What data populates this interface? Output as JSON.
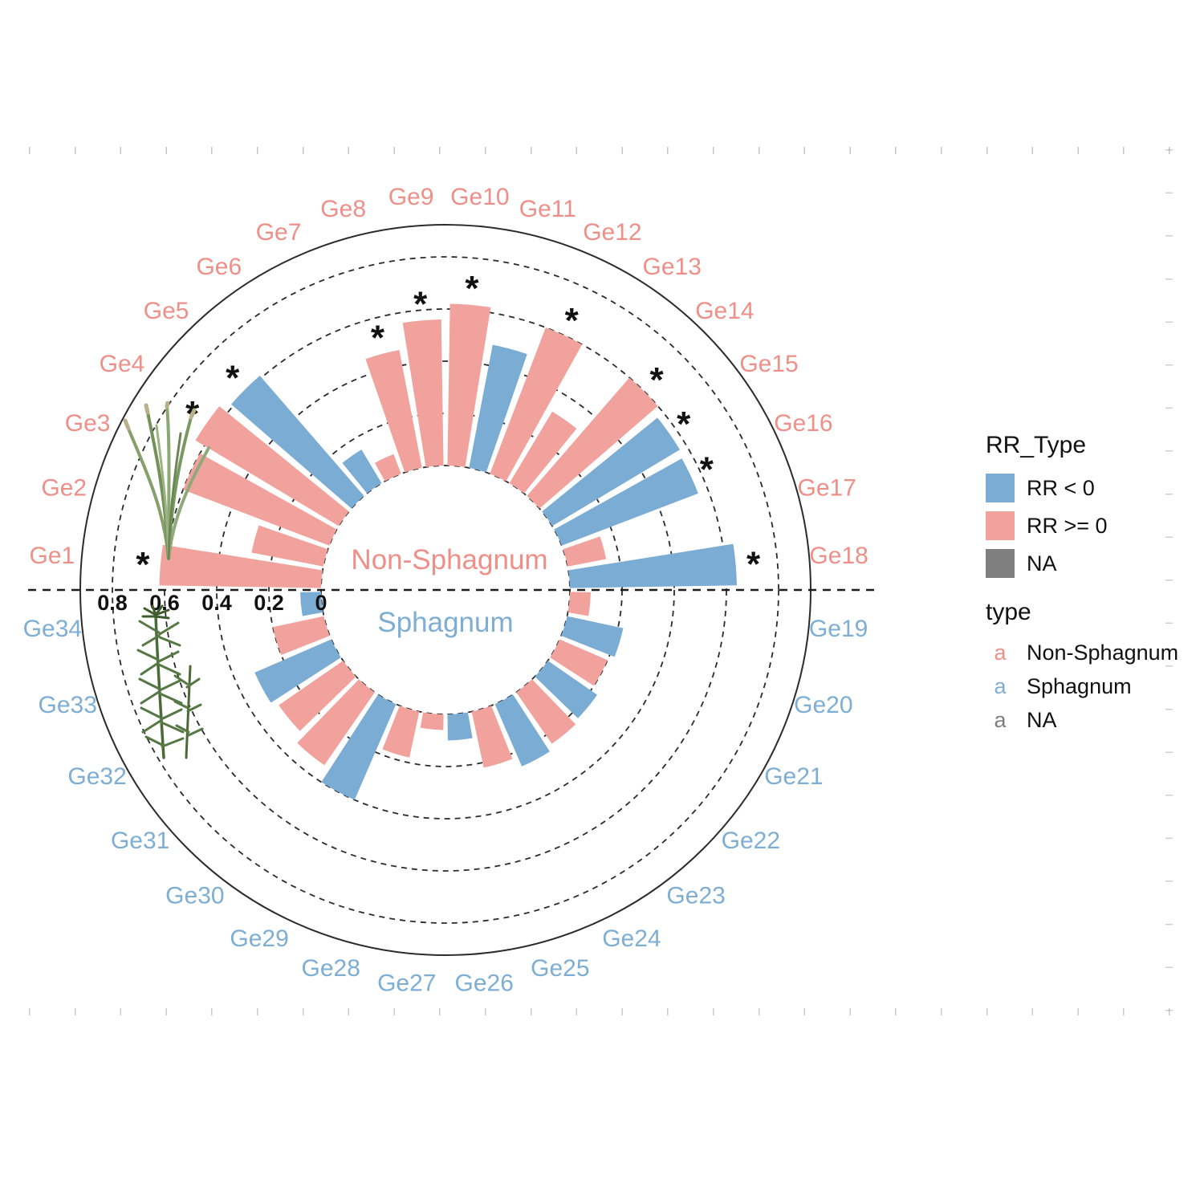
{
  "chart_data": {
    "type": "bar",
    "layout": "polar-circular",
    "title": "",
    "center_labels": {
      "top": "Non-Sphagnum",
      "bottom": "Sphagnum"
    },
    "radial_axis": {
      "ticks": [
        0.8,
        0.6,
        0.4,
        0.2,
        0
      ],
      "tick_labels": [
        "0.8",
        "0.6",
        "0.4",
        "0.2",
        "0"
      ],
      "range": [
        0,
        0.8
      ],
      "grid": "dashed-circles",
      "diameter_line": "dashed-horizontal"
    },
    "colors": {
      "rr_negative": "#7BACD4",
      "rr_nonnegative": "#F2A29C",
      "na": "#7F7F7F",
      "label_top": "#EE8F88",
      "label_bottom": "#7EAED3",
      "star": "#111111"
    },
    "groups": [
      {
        "name": "Non-Sphagnum",
        "half": "top",
        "count": 18
      },
      {
        "name": "Sphagnum",
        "half": "bottom",
        "count": 16
      }
    ],
    "bars": [
      {
        "label": "Ge1",
        "group": "Non-Sphagnum",
        "rr_type": "RR >= 0",
        "value": 0.62,
        "significant": true
      },
      {
        "label": "Ge2",
        "group": "Non-Sphagnum",
        "rr_type": "RR >= 0",
        "value": 0.28,
        "significant": false
      },
      {
        "label": "Ge3",
        "group": "Non-Sphagnum",
        "rr_type": "RR >= 0",
        "value": 0.6,
        "significant": false
      },
      {
        "label": "Ge4",
        "group": "Non-Sphagnum",
        "rr_type": "RR >= 0",
        "value": 0.64,
        "significant": true
      },
      {
        "label": "Ge5",
        "group": "Non-Sphagnum",
        "rr_type": "RR < 0",
        "value": 0.61,
        "significant": true
      },
      {
        "label": "Ge6",
        "group": "Non-Sphagnum",
        "rr_type": "RR < 0",
        "value": 0.15,
        "significant": false
      },
      {
        "label": "Ge7",
        "group": "Non-Sphagnum",
        "rr_type": "RR >= 0",
        "value": 0.08,
        "significant": false
      },
      {
        "label": "Ge8",
        "group": "Non-Sphagnum",
        "rr_type": "RR >= 0",
        "value": 0.46,
        "significant": true
      },
      {
        "label": "Ge9",
        "group": "Non-Sphagnum",
        "rr_type": "RR >= 0",
        "value": 0.56,
        "significant": true
      },
      {
        "label": "Ge10",
        "group": "Non-Sphagnum",
        "rr_type": "RR >= 0",
        "value": 0.62,
        "significant": true
      },
      {
        "label": "Ge11",
        "group": "Non-Sphagnum",
        "rr_type": "RR < 0",
        "value": 0.48,
        "significant": false
      },
      {
        "label": "Ge12",
        "group": "Non-Sphagnum",
        "rr_type": "RR >= 0",
        "value": 0.6,
        "significant": true
      },
      {
        "label": "Ge13",
        "group": "Non-Sphagnum",
        "rr_type": "RR >= 0",
        "value": 0.32,
        "significant": false
      },
      {
        "label": "Ge14",
        "group": "Non-Sphagnum",
        "rr_type": "RR >= 0",
        "value": 0.6,
        "significant": true
      },
      {
        "label": "Ge15",
        "group": "Non-Sphagnum",
        "rr_type": "RR < 0",
        "value": 0.57,
        "significant": true
      },
      {
        "label": "Ge16",
        "group": "Non-Sphagnum",
        "rr_type": "RR < 0",
        "value": 0.56,
        "significant": true
      },
      {
        "label": "Ge17",
        "group": "Non-Sphagnum",
        "rr_type": "RR >= 0",
        "value": 0.15,
        "significant": false
      },
      {
        "label": "Ge18",
        "group": "Non-Sphagnum",
        "rr_type": "RR < 0",
        "value": 0.64,
        "significant": true
      },
      {
        "label": "Ge19",
        "group": "Sphagnum",
        "rr_type": "RR >= 0",
        "value": 0.08,
        "significant": false
      },
      {
        "label": "Ge20",
        "group": "Sphagnum",
        "rr_type": "RR < 0",
        "value": 0.22,
        "significant": false
      },
      {
        "label": "Ge21",
        "group": "Sphagnum",
        "rr_type": "RR >= 0",
        "value": 0.2,
        "significant": false
      },
      {
        "label": "Ge22",
        "group": "Sphagnum",
        "rr_type": "RR < 0",
        "value": 0.23,
        "significant": false
      },
      {
        "label": "Ge23",
        "group": "Sphagnum",
        "rr_type": "RR >= 0",
        "value": 0.24,
        "significant": false
      },
      {
        "label": "Ge24",
        "group": "Sphagnum",
        "rr_type": "RR < 0",
        "value": 0.26,
        "significant": false
      },
      {
        "label": "Ge25",
        "group": "Sphagnum",
        "rr_type": "RR >= 0",
        "value": 0.22,
        "significant": false
      },
      {
        "label": "Ge26",
        "group": "Sphagnum",
        "rr_type": "RR < 0",
        "value": 0.1,
        "significant": false
      },
      {
        "label": "Ge27",
        "group": "Sphagnum",
        "rr_type": "RR >= 0",
        "value": 0.06,
        "significant": false
      },
      {
        "label": "Ge28",
        "group": "Sphagnum",
        "rr_type": "RR >= 0",
        "value": 0.18,
        "significant": false
      },
      {
        "label": "Ge29",
        "group": "Sphagnum",
        "rr_type": "RR < 0",
        "value": 0.4,
        "significant": false
      },
      {
        "label": "Ge30",
        "group": "Sphagnum",
        "rr_type": "RR >= 0",
        "value": 0.34,
        "significant": false
      },
      {
        "label": "Ge31",
        "group": "Sphagnum",
        "rr_type": "RR >= 0",
        "value": 0.3,
        "significant": false
      },
      {
        "label": "Ge32",
        "group": "Sphagnum",
        "rr_type": "RR < 0",
        "value": 0.32,
        "significant": false
      },
      {
        "label": "Ge33",
        "group": "Sphagnum",
        "rr_type": "RR >= 0",
        "value": 0.2,
        "significant": false
      },
      {
        "label": "Ge34",
        "group": "Sphagnum",
        "rr_type": "RR < 0",
        "value": 0.08,
        "significant": false
      }
    ]
  },
  "legend": {
    "rr_type": {
      "heading": "RR_Type",
      "items": [
        {
          "label": "RR < 0",
          "color": "#7BACD4"
        },
        {
          "label": "RR >= 0",
          "color": "#F2A29C"
        },
        {
          "label": "NA",
          "color": "#7F7F7F"
        }
      ]
    },
    "type": {
      "heading": "type",
      "items": [
        {
          "key": "a",
          "label": "Non-Sphagnum",
          "color": "#EE8F88"
        },
        {
          "key": "a",
          "label": "Sphagnum",
          "color": "#7EAED3"
        },
        {
          "key": "a",
          "label": "NA",
          "color": "#7F7F7F"
        }
      ]
    }
  },
  "decorations": {
    "top_plant_icon": "grass-plant-image",
    "bottom_plant_icon": "sphagnum-moss-image"
  }
}
